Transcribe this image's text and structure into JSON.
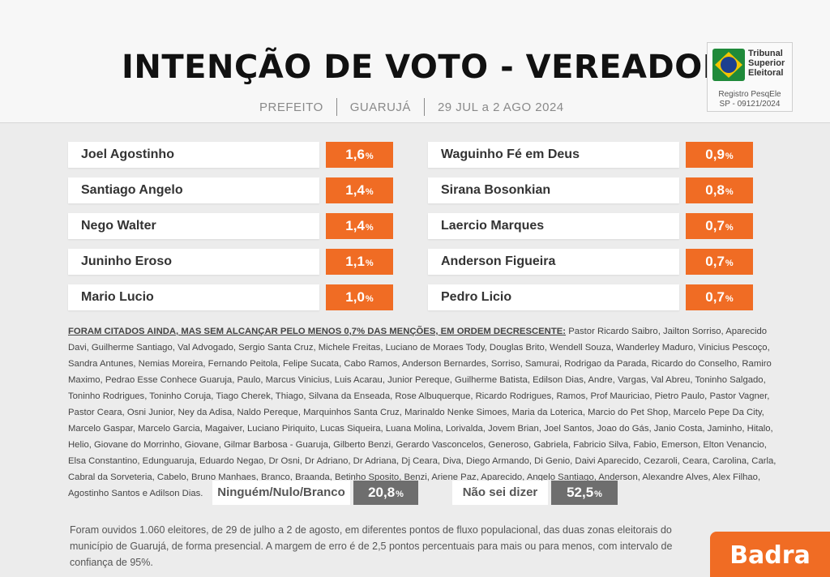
{
  "header": {
    "title": "INTENÇÃO DE VOTO - VEREADOR",
    "subtitle_parts": [
      "PREFEITO",
      "GUARUJÁ",
      "29 JUL a 2 AGO 2024"
    ]
  },
  "registration": {
    "org_lines": [
      "Tribunal",
      "Superior",
      "Eleitoral"
    ],
    "reg_lines": [
      "Registro PesqEle",
      "SP - 09121/2024"
    ],
    "colors": {
      "flag_green": "#1f8a3a",
      "flag_yellow": "#f2c500",
      "flag_blue": "#1d3f8f"
    }
  },
  "chart_data": {
    "type": "table",
    "unit": "%",
    "accent_color": "#f06c24",
    "columns": [
      [
        {
          "name": "Joel Agostinho",
          "value": 1.6,
          "label": "1,6"
        },
        {
          "name": "Santiago Angelo",
          "value": 1.4,
          "label": "1,4"
        },
        {
          "name": "Nego Walter",
          "value": 1.4,
          "label": "1,4"
        },
        {
          "name": "Juninho Eroso",
          "value": 1.1,
          "label": "1,1"
        },
        {
          "name": "Mario Lucio",
          "value": 1.0,
          "label": "1,0"
        }
      ],
      [
        {
          "name": "Waguinho Fé em Deus",
          "value": 0.9,
          "label": "0,9"
        },
        {
          "name": "Sirana Bosonkian",
          "value": 0.8,
          "label": "0,8"
        },
        {
          "name": "Laercio Marques",
          "value": 0.7,
          "label": "0,7"
        },
        {
          "name": "Anderson Figueira",
          "value": 0.7,
          "label": "0,7"
        },
        {
          "name": "Pedro Licio",
          "value": 0.7,
          "label": "0,7"
        }
      ]
    ],
    "others": [
      {
        "name": "Ninguém/Nulo/Branco",
        "value": 20.8,
        "label": "20,8"
      },
      {
        "name": "Não sei dizer",
        "value": 52.5,
        "label": "52,5"
      }
    ]
  },
  "cited": {
    "lead": "FORAM CITADOS AINDA, MAS SEM ALCANÇAR PELO MENOS 0,7% DAS MENÇÕES, EM ORDEM DECRESCENTE:",
    "text": "Pastor Ricardo Saibro, Jailton Sorriso, Aparecido Davi, Guilherme Santiago, Val Advogado, Sergio Santa Cruz, Michele Freitas, Luciano de Moraes Tody, Douglas Brito, Wendell Souza, Wanderley Maduro, Vinicius Pescoço, Sandra Antunes, Nemias Moreira, Fernando Peitola, Felipe Sucata, Cabo Ramos, Anderson Bernardes, Sorriso, Samurai, Rodrigao da Parada, Ricardo do Conselho, Ramiro Maximo, Pedrao Esse Conhece Guaruja, Paulo, Marcus Vinicius, Luis Acarau, Junior Pereque, Guilherme Batista, Edilson Dias, Andre, Vargas, Val Abreu, Toninho Salgado, Toninho Rodrigues, Toninho Coruja, Tiago Cherek, Thiago, Silvana da Enseada, Rose Albuquerque, Ricardo Rodrigues, Ramos, Prof Mauriciao, Pietro Paulo, Pastor Vagner, Pastor Ceara, Osni Junior, Ney da Adisa, Naldo Pereque, Marquinhos Santa Cruz, Marinaldo Nenke Simoes, Maria da Loterica, Marcio do Pet Shop, Marcelo Pepe Da City, Marcelo Gaspar, Marcelo Garcia, Magaiver, Luciano Piriquito, Lucas Siqueira, Luana Molina, Lorivalda, Jovem Brian, Joel Santos, Joao do Gás, Janio Costa, Jaminho, Hitalo, Helio, Giovane do Morrinho, Giovane, Gilmar Barbosa - Guaruja, Gilberto Benzi, Gerardo Vasconcelos, Generoso, Gabriela, Fabricio Silva, Fabio, Emerson, Elton Venancio, Elsa Constantino, Edunguaruja, Eduardo Negao, Dr Osni, Dr Adriano, Dr Adriana, Dj Ceara, Diva, Diego Armando, Di Genio, Daivi Aparecido, Cezaroli, Ceara, Carolina, Carla, Cabral da Sorveteria, Cabelo, Bruno Manhaes, Branco, Braanda, Betinho Sposito, Benzi, Ariene Paz, Aparecido, Angelo Santiago, Anderson, Alexandre Alves, Alex Filhao, Agostinho Santos e Adilson Dias."
  },
  "footnote": "Foram ouvidos 1.060 eleitores, de 29 de julho a 2 de agosto, em diferentes pontos de fluxo populacional, das duas zonas eleitorais do município de Guarujá, de forma presencial. A margem de erro é de 2,5 pontos percentuais para mais ou para menos, com intervalo de confiança de 95%.",
  "brand": "Badra"
}
